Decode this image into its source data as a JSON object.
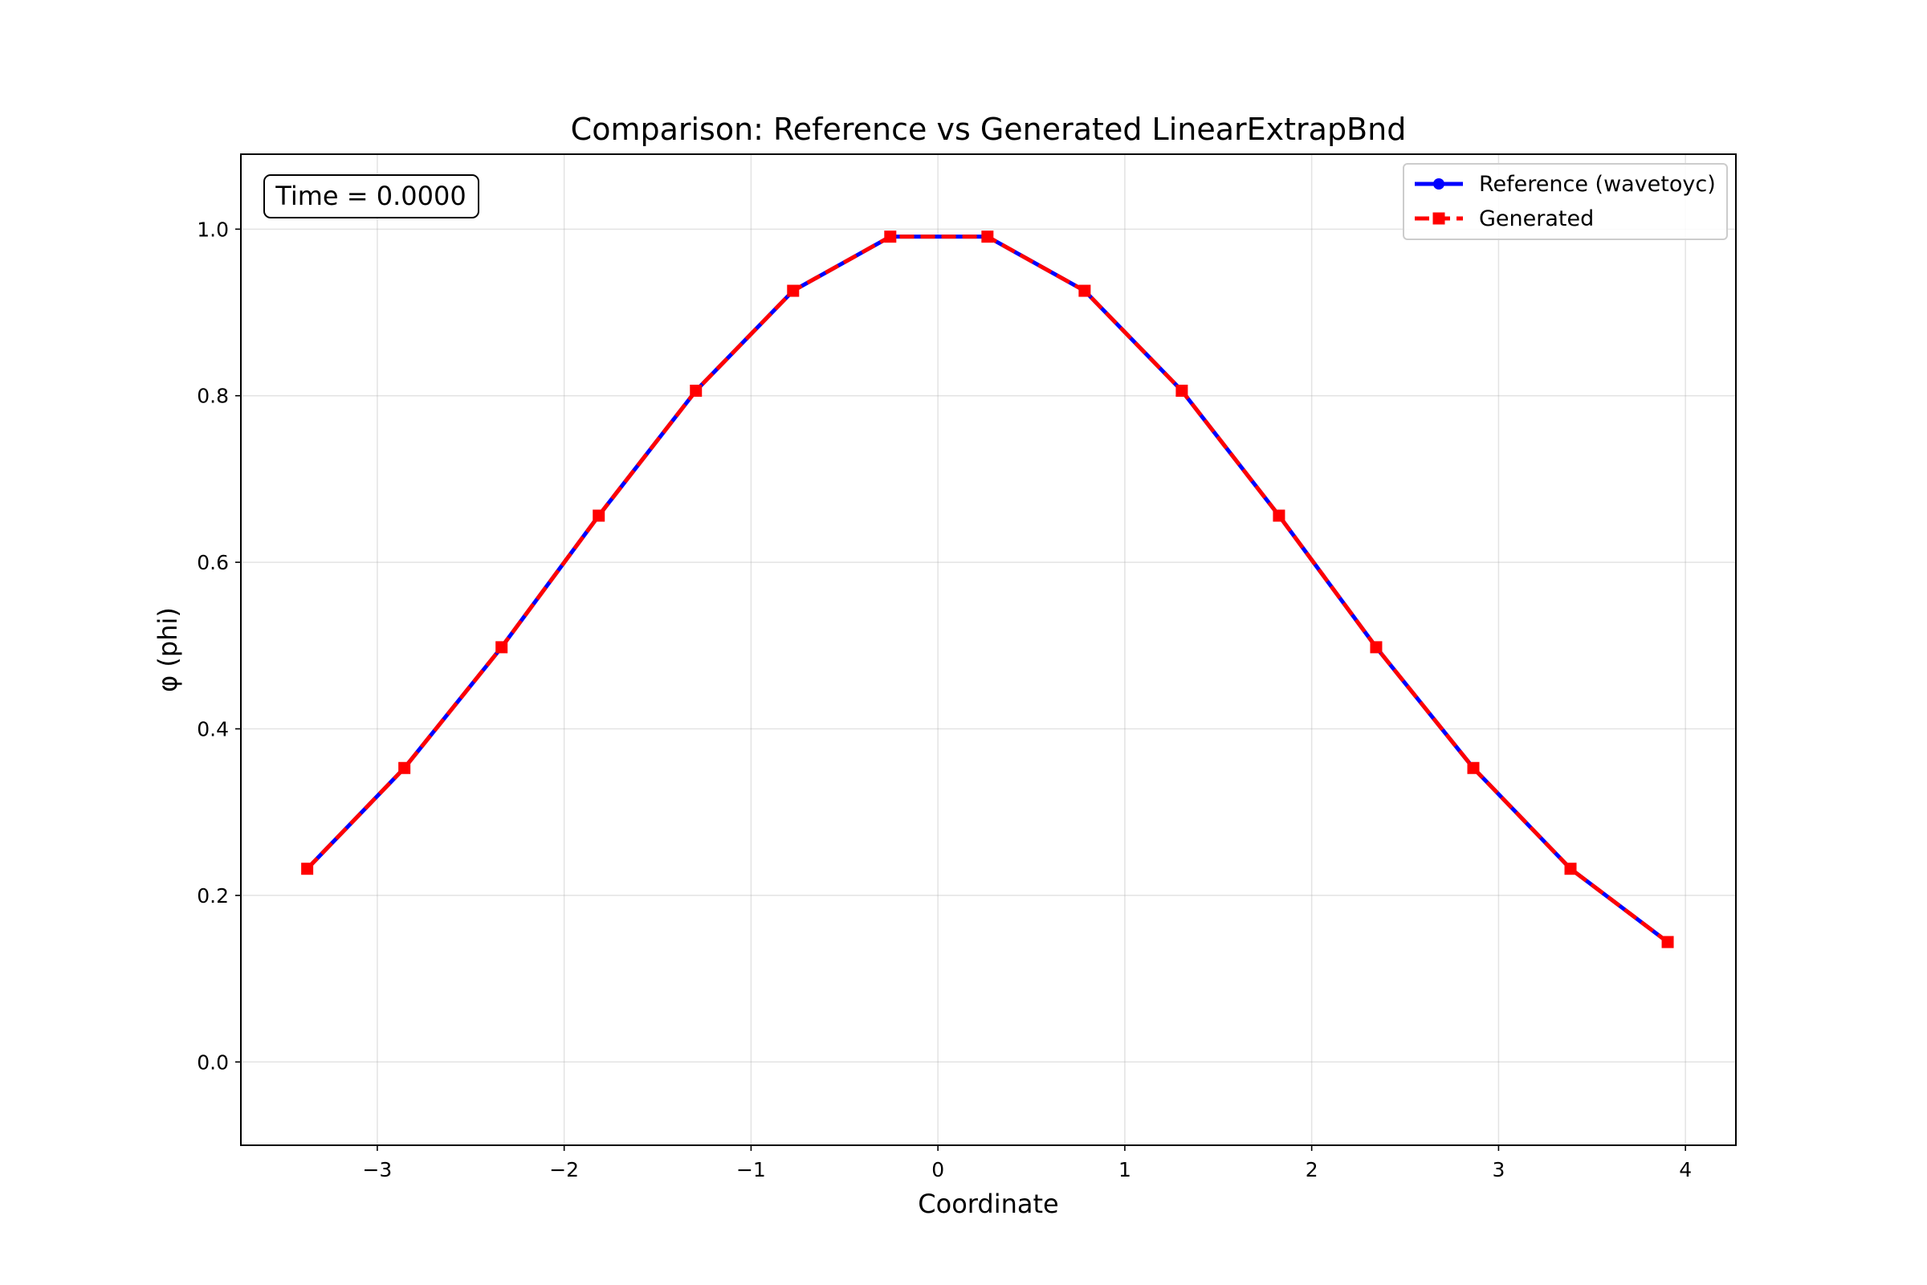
{
  "chart_data": {
    "type": "line",
    "title": "Comparison: Reference vs Generated LinearExtrapBnd",
    "xlabel": "Coordinate",
    "ylabel": "φ (phi)",
    "xlim": [
      -3.73,
      4.27
    ],
    "ylim": [
      -0.1,
      1.09
    ],
    "xticks": [
      -3,
      -2,
      -1,
      0,
      1,
      2,
      3,
      4
    ],
    "xtick_labels": [
      "−3",
      "−2",
      "−1",
      "0",
      "1",
      "2",
      "3",
      "4"
    ],
    "yticks": [
      0.0,
      0.2,
      0.4,
      0.6,
      0.8,
      1.0
    ],
    "ytick_labels": [
      "0.0",
      "0.2",
      "0.4",
      "0.6",
      "0.8",
      "1.0"
    ],
    "grid": true,
    "legend_position": "top-right",
    "annotation": "Time = 0.0000",
    "x": [
      -3.375,
      -2.855,
      -2.335,
      -1.815,
      -1.295,
      -0.775,
      -0.255,
      0.265,
      0.785,
      1.305,
      1.825,
      2.345,
      2.865,
      3.385,
      3.905
    ],
    "series": [
      {
        "name": "Reference (wavetoyc)",
        "color": "#0000ff",
        "marker": "circle",
        "line": "solid",
        "values": [
          0.232,
          0.353,
          0.498,
          0.656,
          0.806,
          0.926,
          0.991,
          0.991,
          0.926,
          0.806,
          0.656,
          0.498,
          0.353,
          0.232,
          0.144
        ]
      },
      {
        "name": "Generated",
        "color": "#ff0000",
        "marker": "square",
        "line": "dashed",
        "values": [
          0.232,
          0.353,
          0.498,
          0.656,
          0.806,
          0.926,
          0.991,
          0.991,
          0.926,
          0.806,
          0.656,
          0.498,
          0.353,
          0.232,
          0.144
        ]
      }
    ]
  }
}
